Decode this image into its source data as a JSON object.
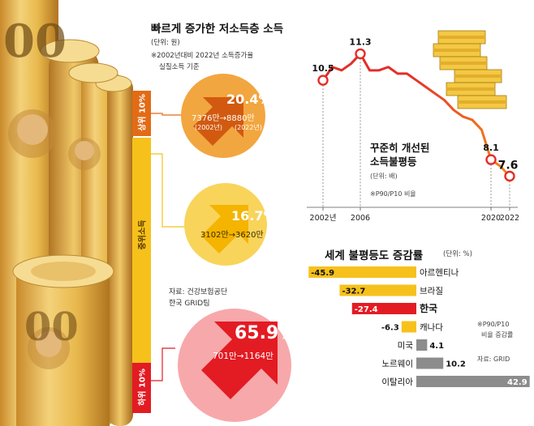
{
  "colors": {
    "orange": "#e26b16",
    "orange_light": "#f2a640",
    "yellow": "#f7c11b",
    "yellow_light": "#f9d45a",
    "red": "#e31b23",
    "gray": "#8c8c8c",
    "line_red": "#e52d27",
    "line_orange": "#f18a1c"
  },
  "income_panel": {
    "title": "빠르게 증가한 저소득층 소득",
    "unit": "(단위: 원)",
    "note_line1": "※2002년대비 2022년 소득증가율",
    "note_line2": "실질소득 기준",
    "source_line1": "자료: 건강보험공단",
    "source_line2": "한국 GRID팀",
    "groups": [
      {
        "label": "상위 10%",
        "pct": "20.4%",
        "range": "7376만→8880만",
        "year_from": "(2002년)",
        "year_to": "(2022년)"
      },
      {
        "label": "중위소득",
        "pct": "16.7%",
        "range": "3102만→3620만"
      },
      {
        "label": "하위 10%",
        "pct": "65.9%",
        "range": "701만→1164만"
      }
    ]
  },
  "chart_data": [
    {
      "type": "line",
      "title": "꾸준히 개선된 소득불평등",
      "unit": "(단위: 배)",
      "note": "※P90/P10 비율",
      "x": [
        2002,
        2006,
        2020,
        2022
      ],
      "x_tick_labels": [
        "2002년",
        "2006",
        "2020",
        "2022"
      ],
      "labelled_points": [
        {
          "x": 2002,
          "y": 10.5,
          "label": "10.5"
        },
        {
          "x": 2006,
          "y": 11.3,
          "label": "11.3"
        },
        {
          "x": 2020,
          "y": 8.1,
          "label": "8.1"
        },
        {
          "x": 2022,
          "y": 7.6,
          "label": "7.6"
        }
      ],
      "series": [
        {
          "x": [
            2002,
            2003,
            2004,
            2005,
            2006,
            2007,
            2008,
            2009,
            2010,
            2011,
            2012,
            2013,
            2014,
            2015,
            2016,
            2017,
            2018,
            2019,
            2020,
            2021,
            2022
          ],
          "values": [
            10.5,
            10.9,
            10.8,
            11.0,
            11.3,
            10.8,
            10.8,
            10.9,
            10.7,
            10.7,
            10.5,
            10.3,
            10.1,
            9.9,
            9.6,
            9.4,
            9.3,
            9.0,
            8.1,
            7.9,
            7.6
          ]
        }
      ],
      "ylim": [
        7.0,
        11.8
      ]
    },
    {
      "type": "bar",
      "orientation": "horizontal",
      "title": "세계 불평등도 증감률",
      "unit": "(단위: %)",
      "note_line1": "※P90/P10",
      "note_line2": "비율 증감률",
      "source": "자료: GRID",
      "categories": [
        "아르헨티나",
        "브라질",
        "한국",
        "캐나다",
        "미국",
        "노르웨이",
        "이탈리아"
      ],
      "values": [
        -45.9,
        -32.7,
        -27.4,
        -6.3,
        4.1,
        10.2,
        42.9
      ],
      "value_labels": [
        "-45.9",
        "-32.7",
        "-27.4",
        "-6.3",
        "4.1",
        "10.2",
        "42.9"
      ],
      "highlight": "한국",
      "xlim": [
        -46,
        43
      ]
    }
  ]
}
